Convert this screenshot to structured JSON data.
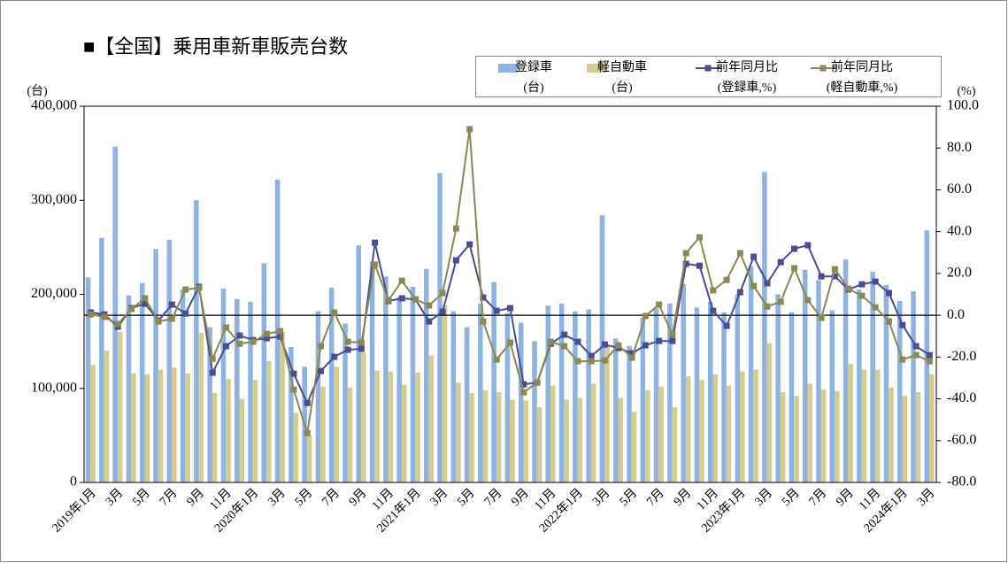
{
  "chart_data": {
    "type": "bar",
    "title": "■【全国】乗用車新車販売台数",
    "y_label": "(台)",
    "y2_label": "(%)",
    "categories": [
      "2019年1月",
      null,
      "3月",
      null,
      "5月",
      null,
      "7月",
      null,
      "9月",
      null,
      "11月",
      null,
      "2020年1月",
      null,
      "3月",
      null,
      "5月",
      null,
      "7月",
      null,
      "9月",
      null,
      "11月",
      null,
      "2021年1月",
      null,
      "3月",
      null,
      "5月",
      null,
      "7月",
      null,
      "9月",
      null,
      "11月",
      null,
      "2022年1月",
      null,
      "3月",
      null,
      "5月",
      null,
      "7月",
      null,
      "9月",
      null,
      "11月",
      null,
      "2023年1月",
      null,
      "3月",
      null,
      "5月",
      null,
      "7月",
      null,
      "9月",
      null,
      "11月",
      null,
      "2024年1月",
      null,
      "3月"
    ],
    "ylim": [
      0,
      400000
    ],
    "yticks": [
      0,
      {
        "value": 100000,
        "label": "100,000"
      },
      {
        "value": 200000,
        "label": "200,000"
      },
      {
        "value": 300000,
        "label": "300,000"
      },
      {
        "value": 400000,
        "label": "400,000"
      }
    ],
    "y2lim": [
      -80,
      100
    ],
    "y2ticks": [
      {
        "value": -80,
        "label": "-80.0"
      },
      {
        "value": -60,
        "label": "-60.0"
      },
      {
        "value": -40,
        "label": "-40.0"
      },
      {
        "value": -20,
        "label": "-20.0"
      },
      {
        "value": 0,
        "label": "0.0"
      },
      {
        "value": 20,
        "label": "20.0"
      },
      {
        "value": 40,
        "label": "40.0"
      },
      {
        "value": 60,
        "label": "60.0"
      },
      {
        "value": 80,
        "label": "80.0"
      },
      {
        "value": 100,
        "label": "100.0"
      }
    ],
    "series": [
      {
        "name": "登録車\n(台)",
        "type": "bar",
        "color": "#8db3e2",
        "values": [
          218000,
          260000,
          357000,
          199000,
          212000,
          248000,
          258000,
          205000,
          300000,
          165000,
          206000,
          195000,
          192000,
          233000,
          322000,
          144000,
          123000,
          182000,
          207000,
          169000,
          252000,
          235000,
          219000,
          197000,
          208000,
          227000,
          329000,
          182000,
          165000,
          190000,
          213000,
          180000,
          170000,
          150000,
          188000,
          190000,
          182000,
          184000,
          284000,
          153000,
          145000,
          175000,
          185000,
          190000,
          211000,
          186000,
          192000,
          181000,
          200000,
          230000,
          330000,
          200000,
          181000,
          226000,
          215000,
          183000,
          237000,
          205000,
          224000,
          210000,
          193000,
          203000,
          268000
        ]
      },
      {
        "name": "軽自動車\n(台)",
        "type": "bar",
        "color": "#d5cc8e",
        "values": [
          125000,
          140000,
          160000,
          116000,
          115000,
          120000,
          122000,
          116000,
          159000,
          95000,
          110000,
          89000,
          109000,
          129000,
          160000,
          74000,
          50000,
          102000,
          123000,
          101000,
          138000,
          119000,
          118000,
          104000,
          117000,
          135000,
          188000,
          106000,
          95000,
          98000,
          96000,
          88000,
          87000,
          80000,
          103000,
          88000,
          90000,
          105000,
          145000,
          90000,
          75000,
          98000,
          102000,
          80000,
          113000,
          109000,
          115000,
          103000,
          118000,
          120000,
          148000,
          96000,
          92000,
          105000,
          99000,
          97000,
          126000,
          120000,
          120000,
          101000,
          92000,
          96000,
          115000
        ]
      },
      {
        "name": "前年同月比\n(登録車,%)",
        "type": "line",
        "axis": "y2",
        "color": "#4b4b96",
        "values": [
          1.3,
          0.4,
          -5.5,
          3.4,
          5.5,
          -2.5,
          5.1,
          0.8,
          13.6,
          -27.5,
          -14.8,
          -9.7,
          -11.9,
          -11.0,
          -10.2,
          -28.0,
          -42.0,
          -26.7,
          -19.9,
          -16.5,
          -16.1,
          34.7,
          6.8,
          8.1,
          7.6,
          -3.0,
          1.7,
          26.3,
          33.9,
          8.5,
          2.1,
          3.4,
          -33.1,
          -32.2,
          -13.6,
          -9.3,
          -12.7,
          -19.5,
          -14.0,
          -15.7,
          -18.2,
          -14.4,
          -12.3,
          -12.3,
          24.6,
          23.7,
          2.1,
          -5.1,
          11.0,
          28.0,
          15.3,
          25.4,
          31.8,
          33.5,
          18.6,
          18.6,
          12.3,
          14.8,
          16.1,
          10.6,
          -4.7,
          -14.8,
          -19.1
        ]
      },
      {
        "name": "前年同月比\n(軽自動車,%)",
        "type": "line",
        "axis": "y2",
        "color": "#8c8850",
        "values": [
          0.4,
          -0.8,
          -4.2,
          3.0,
          8.1,
          -3.0,
          -1.7,
          12.3,
          13.1,
          -20.8,
          -5.9,
          -13.6,
          -12.7,
          -8.9,
          -7.6,
          -35.6,
          -56.4,
          -14.8,
          1.3,
          -12.7,
          -13.1,
          24.2,
          7.2,
          16.5,
          7.6,
          4.7,
          10.6,
          41.5,
          89.0,
          -3.0,
          -21.2,
          -13.1,
          -36.9,
          -32.2,
          -12.7,
          -14.8,
          -22.0,
          -22.0,
          -21.6,
          -14.4,
          -20.3,
          -0.4,
          5.1,
          -9.3,
          29.7,
          37.3,
          11.9,
          16.9,
          29.7,
          14.0,
          4.2,
          6.4,
          22.5,
          7.2,
          -1.3,
          22.0,
          12.7,
          9.3,
          3.8,
          -3.0,
          -21.2,
          -19.1,
          -22.0
        ]
      }
    ]
  }
}
